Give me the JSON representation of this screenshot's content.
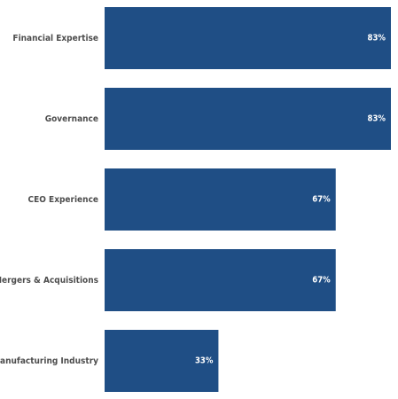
{
  "chart_data": {
    "type": "bar",
    "orientation": "horizontal",
    "categories": [
      "Financial Expertise",
      "Governance",
      "CEO Experience",
      "Mergers & Acquisitions",
      "Manufacturing Industry"
    ],
    "values": [
      83,
      83,
      67,
      67,
      33
    ],
    "value_labels": [
      "83%",
      "83%",
      "67%",
      "67%",
      "33%"
    ],
    "xlim": [
      0,
      83
    ],
    "bar_color": "#1f4e85",
    "value_label_color": "#ffffff",
    "category_label_color": "#4d4d4d",
    "grid": false,
    "legend": "none"
  }
}
